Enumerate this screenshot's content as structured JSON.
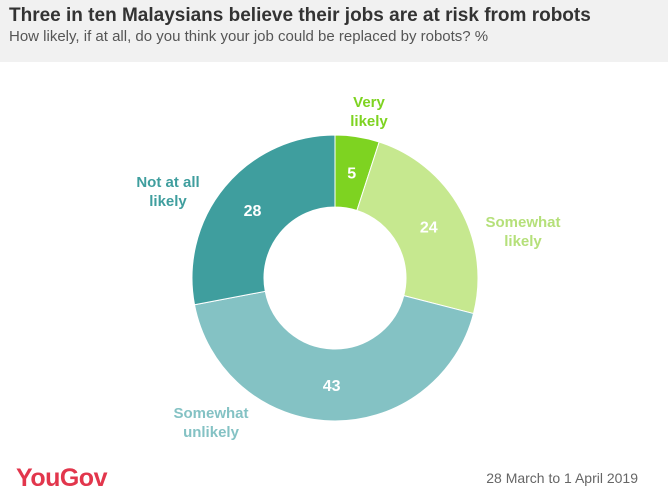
{
  "header": {
    "title": "Three in ten Malaysians believe their jobs are at risk from robots",
    "subtitle": "How likely, if at all, do you think your job could be replaced by robots? %"
  },
  "footer": {
    "brand": "YouGov",
    "date": "28 March to 1 April 2019"
  },
  "colors": {
    "very_likely": "#7ed321",
    "somewhat_likely": "#c6e88f",
    "somewhat_unlikely": "#84c2c4",
    "not_at_all_likely": "#3f9e9e",
    "label_green": "#7ed321",
    "label_lightgreen": "#b5e07a",
    "label_lightteal": "#84c2c4",
    "label_teal": "#3f9e9e"
  },
  "chart_data": {
    "type": "pie",
    "donut": true,
    "title": "Three in ten Malaysians believe their jobs are at risk from robots",
    "unit": "%",
    "slices": [
      {
        "key": "very_likely",
        "label": "Very likely",
        "label_lines": [
          "Very",
          "likely"
        ],
        "value": 5
      },
      {
        "key": "somewhat_likely",
        "label": "Somewhat likely",
        "label_lines": [
          "Somewhat",
          "likely"
        ],
        "value": 24
      },
      {
        "key": "somewhat_unlikely",
        "label": "Somewhat unlikely",
        "label_lines": [
          "Somewhat",
          "unlikely"
        ],
        "value": 43
      },
      {
        "key": "not_at_all_likely",
        "label": "Not at all likely",
        "label_lines": [
          "Not at all",
          "likely"
        ],
        "value": 28
      }
    ]
  }
}
